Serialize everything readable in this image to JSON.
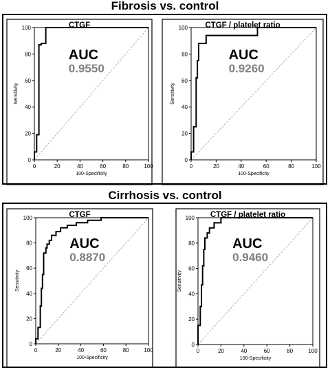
{
  "sections": [
    {
      "title": "Fibrosis vs. control"
    },
    {
      "title": "Cirrhosis vs. control"
    }
  ],
  "colors": {
    "curve": "#000000",
    "diagonal": "#a0a0a0",
    "auc_value": "#808080",
    "frame": "#000000"
  },
  "chart_data": [
    {
      "type": "line",
      "section": 0,
      "title": "CTGF",
      "xlabel": "100-Specificity",
      "ylabel": "Sensitivity",
      "xlim": [
        0,
        100
      ],
      "ylim": [
        0,
        100
      ],
      "xticks": [
        0,
        20,
        40,
        60,
        80,
        100
      ],
      "yticks": [
        0,
        20,
        40,
        60,
        80,
        100
      ],
      "grid": false,
      "reference_line": "diagonal",
      "auc_label": "AUC",
      "auc_value": "0.9550",
      "series": [
        {
          "x": [
            0,
            0,
            2,
            2,
            4,
            4,
            6,
            6,
            10,
            10,
            100
          ],
          "y": [
            0,
            6,
            6,
            19,
            19,
            87,
            87,
            88,
            88,
            100,
            100
          ]
        }
      ]
    },
    {
      "type": "line",
      "section": 0,
      "title": "CTGF / platelet ratio",
      "xlabel": "100-Specificity",
      "ylabel": "Sensitivity",
      "xlim": [
        0,
        100
      ],
      "ylim": [
        0,
        100
      ],
      "xticks": [
        0,
        20,
        40,
        60,
        80,
        100
      ],
      "yticks": [
        0,
        20,
        40,
        60,
        80,
        100
      ],
      "grid": false,
      "reference_line": "diagonal",
      "auc_label": "AUC",
      "auc_value": "0.9260",
      "series": [
        {
          "x": [
            0,
            0,
            2,
            2,
            4,
            4,
            5,
            5,
            6,
            6,
            12,
            12,
            53,
            53,
            100
          ],
          "y": [
            0,
            6,
            6,
            25,
            25,
            62,
            62,
            75,
            75,
            88,
            88,
            94,
            94,
            100,
            100
          ]
        }
      ]
    },
    {
      "type": "line",
      "section": 1,
      "title": "CTGF",
      "xlabel": "100-Specificity",
      "ylabel": "Sensitivity",
      "xlim": [
        0,
        100
      ],
      "ylim": [
        0,
        100
      ],
      "xticks": [
        0,
        20,
        40,
        60,
        80,
        100
      ],
      "yticks": [
        0,
        20,
        40,
        60,
        80,
        100
      ],
      "grid": false,
      "reference_line": "diagonal",
      "auc_label": "AUC",
      "auc_value": "0.8870",
      "series": [
        {
          "x": [
            0,
            0,
            2,
            2,
            4,
            4,
            5,
            5,
            6,
            6,
            7,
            7,
            9,
            9,
            10,
            10,
            12,
            12,
            14,
            14,
            18,
            18,
            22,
            22,
            28,
            28,
            36,
            36,
            46,
            46,
            58,
            58,
            100
          ],
          "y": [
            0,
            4,
            4,
            13,
            13,
            30,
            30,
            44,
            44,
            55,
            55,
            72,
            72,
            76,
            76,
            79,
            79,
            82,
            82,
            86,
            86,
            89,
            89,
            92,
            92,
            94,
            94,
            96,
            96,
            98,
            98,
            100,
            100
          ]
        }
      ]
    },
    {
      "type": "line",
      "section": 1,
      "title": "CTGF / platelet ratio",
      "xlabel": "100-Specificity",
      "ylabel": "Sensitivity",
      "xlim": [
        0,
        100
      ],
      "ylim": [
        0,
        100
      ],
      "xticks": [
        0,
        20,
        40,
        60,
        80,
        100
      ],
      "yticks": [
        0,
        20,
        40,
        60,
        80,
        100
      ],
      "grid": false,
      "reference_line": "diagonal",
      "auc_label": "AUC",
      "auc_value": "0.9460",
      "series": [
        {
          "x": [
            0,
            0,
            2,
            2,
            3,
            3,
            4,
            4,
            5,
            5,
            6,
            6,
            8,
            8,
            10,
            10,
            14,
            14,
            20,
            20,
            100
          ],
          "y": [
            0,
            15,
            15,
            30,
            30,
            47,
            47,
            62,
            62,
            75,
            75,
            84,
            84,
            88,
            88,
            92,
            92,
            96,
            96,
            100,
            100
          ]
        }
      ]
    }
  ]
}
